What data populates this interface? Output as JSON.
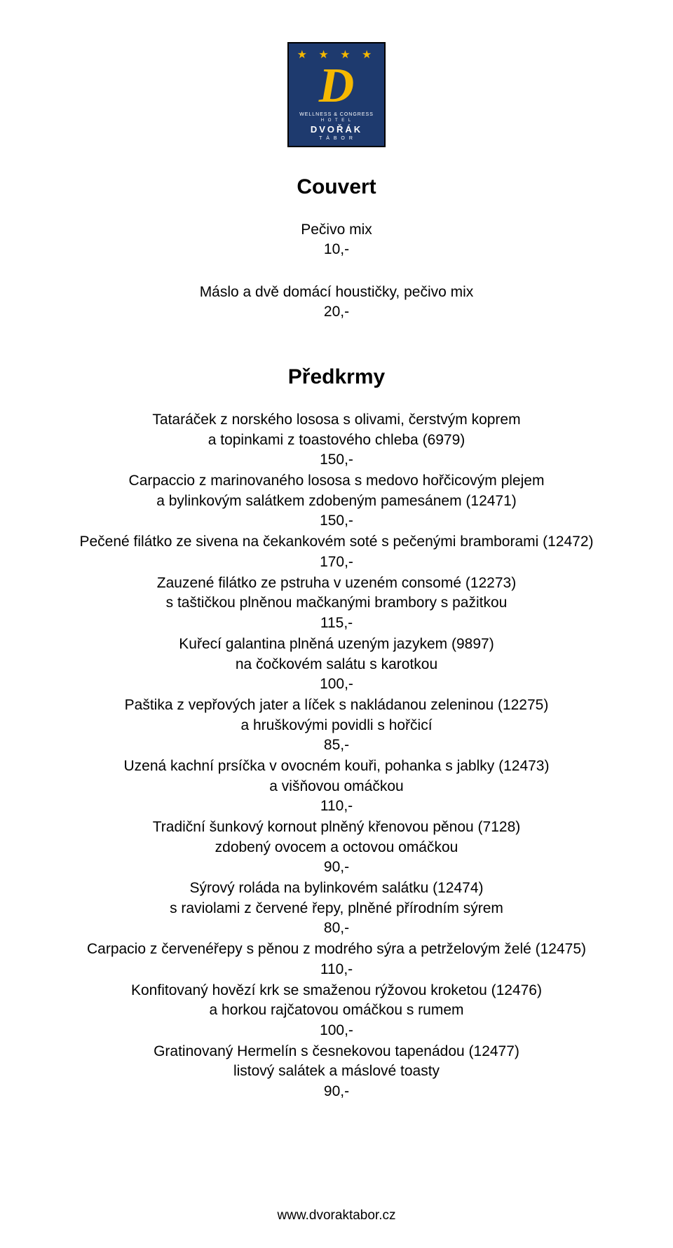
{
  "logo": {
    "stars": "★ ★ ★ ★",
    "letter": "D",
    "line1": "WELLNESS & CONGRESS",
    "line2": "H O T E L",
    "name": "DVOŘÁK",
    "city": "T Á B O R",
    "bg_color": "#1e3a6e",
    "gold": "#f5b800"
  },
  "sections": {
    "couvert": {
      "title": "Couvert",
      "items": [
        {
          "lines": [
            "Pečivo mix"
          ],
          "price": "10,-"
        },
        {
          "lines": [
            "Máslo a dvě domácí houstičky, pečivo mix"
          ],
          "price": "20,-"
        }
      ]
    },
    "predkrmy": {
      "title": "Předkrmy",
      "items": [
        {
          "lines": [
            "Tataráček z norského lososa s olivami, čerstvým koprem",
            "a topinkami z toastového chleba (6979)"
          ],
          "price": "150,-"
        },
        {
          "lines": [
            "Carpaccio z marinovaného lososa s medovo hořčicovým plejem",
            "a bylinkovým salátkem zdobeným pamesánem (12471)"
          ],
          "price": "150,-"
        },
        {
          "lines": [
            "Pečené filátko ze sivena na čekankovém soté s pečenými bramborami (12472)"
          ],
          "price": "170,-"
        },
        {
          "lines": [
            "Zauzené filátko ze pstruha v uzeném consomé (12273)",
            "s taštičkou plněnou mačkanými brambory s pažitkou"
          ],
          "price": "115,-"
        },
        {
          "lines": [
            "Kuřecí galantina plněná uzeným jazykem (9897)",
            "na čočkovém salátu s karotkou"
          ],
          "price": "100,-"
        },
        {
          "lines": [
            "Paštika z vepřových jater a líček s nakládanou zeleninou (12275)",
            "a hruškovými povidli s hořčicí"
          ],
          "price": "85,-"
        },
        {
          "lines": [
            "Uzená kachní prsíčka v ovocném kouři, pohanka s jablky (12473)",
            "a višňovou omáčkou"
          ],
          "price": "110,-"
        },
        {
          "lines": [
            "Tradiční šunkový kornout plněný křenovou pěnou (7128)",
            "zdobený ovocem a octovou omáčkou"
          ],
          "price": "90,-"
        },
        {
          "lines": [
            "Sýrový roláda na bylinkovém salátku (12474)",
            "s raviolami z červené řepy, plněné přírodním sýrem"
          ],
          "price": "80,-"
        },
        {
          "lines": [
            "Carpacio z červenéřepy s pěnou z modrého sýra a petrželovým želé (12475)"
          ],
          "price": "110,-"
        },
        {
          "lines": [
            "Konfitovaný hovězí krk se smaženou rýžovou kroketou (12476)",
            "a horkou rajčatovou omáčkou s rumem"
          ],
          "price": "100,-"
        },
        {
          "lines": [
            "Gratinovaný Hermelín s česnekovou tapenádou (12477)",
            "listový salátek a máslové toasty"
          ],
          "price": "90,-"
        }
      ]
    }
  },
  "footer": {
    "url": "www.dvoraktabor.cz"
  },
  "style": {
    "page_bg": "#ffffff",
    "text_color": "#000000",
    "title_fontsize_pt": 22,
    "body_fontsize_pt": 16,
    "font_family": "Arial"
  }
}
